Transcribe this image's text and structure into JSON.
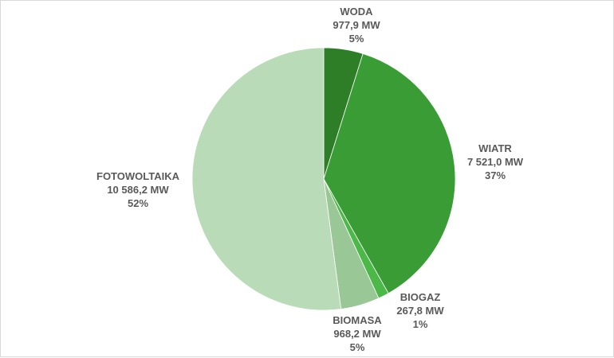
{
  "chart_data": {
    "type": "pie",
    "slices": [
      {
        "name": "WODA",
        "value": 977.9,
        "value_label": "977,9 MW",
        "percent_label": "5%",
        "color": "#2e7d27"
      },
      {
        "name": "WIATR",
        "value": 7521.0,
        "value_label": "7 521,0 MW",
        "percent_label": "37%",
        "color": "#3a9c35"
      },
      {
        "name": "BIOGAZ",
        "value": 267.8,
        "value_label": "267,8 MW",
        "percent_label": "1%",
        "color": "#4cb848"
      },
      {
        "name": "BIOMASA",
        "value": 968.2,
        "value_label": "968,2 MW",
        "percent_label": "5%",
        "color": "#99c896"
      },
      {
        "name": "FOTOWOLTAIKA",
        "value": 10586.2,
        "value_label": "10 586,2 MW",
        "percent_label": "52%",
        "color": "#b9dbb7"
      }
    ],
    "start_angle": "12 o'clock",
    "direction": "clockwise",
    "legend": "none"
  }
}
